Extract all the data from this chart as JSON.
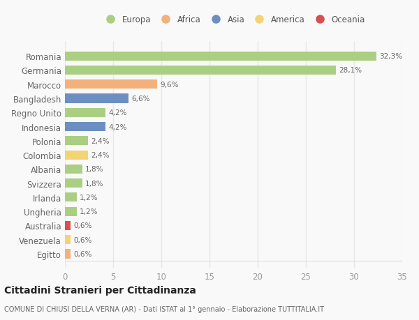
{
  "countries": [
    "Romania",
    "Germania",
    "Marocco",
    "Bangladesh",
    "Regno Unito",
    "Indonesia",
    "Polonia",
    "Colombia",
    "Albania",
    "Svizzera",
    "Irlanda",
    "Ungheria",
    "Australia",
    "Venezuela",
    "Egitto"
  ],
  "values": [
    32.3,
    28.1,
    9.6,
    6.6,
    4.2,
    4.2,
    2.4,
    2.4,
    1.8,
    1.8,
    1.2,
    1.2,
    0.6,
    0.6,
    0.6
  ],
  "labels": [
    "32,3%",
    "28,1%",
    "9,6%",
    "6,6%",
    "4,2%",
    "4,2%",
    "2,4%",
    "2,4%",
    "1,8%",
    "1,8%",
    "1,2%",
    "1,2%",
    "0,6%",
    "0,6%",
    "0,6%"
  ],
  "continents": [
    "Europa",
    "Europa",
    "Africa",
    "Asia",
    "Europa",
    "Asia",
    "Europa",
    "America",
    "Europa",
    "Europa",
    "Europa",
    "Europa",
    "Oceania",
    "America",
    "Africa"
  ],
  "continent_colors": {
    "Europa": "#aacf82",
    "Africa": "#f2b07a",
    "Asia": "#6b8fc0",
    "America": "#f2d472",
    "Oceania": "#d94f4f"
  },
  "legend_order": [
    "Europa",
    "Africa",
    "Asia",
    "America",
    "Oceania"
  ],
  "legend_colors": [
    "#aacf82",
    "#f2b07a",
    "#6b8fc0",
    "#f2d472",
    "#d94f4f"
  ],
  "title": "Cittadini Stranieri per Cittadinanza",
  "subtitle": "COMUNE DI CHIUSI DELLA VERNA (AR) - Dati ISTAT al 1° gennaio - Elaborazione TUTTITALIA.IT",
  "xlim": [
    0,
    35
  ],
  "xticks": [
    0,
    5,
    10,
    15,
    20,
    25,
    30,
    35
  ],
  "background_color": "#f9f9f9",
  "grid_color": "#e8e8e8",
  "bar_height": 0.65
}
